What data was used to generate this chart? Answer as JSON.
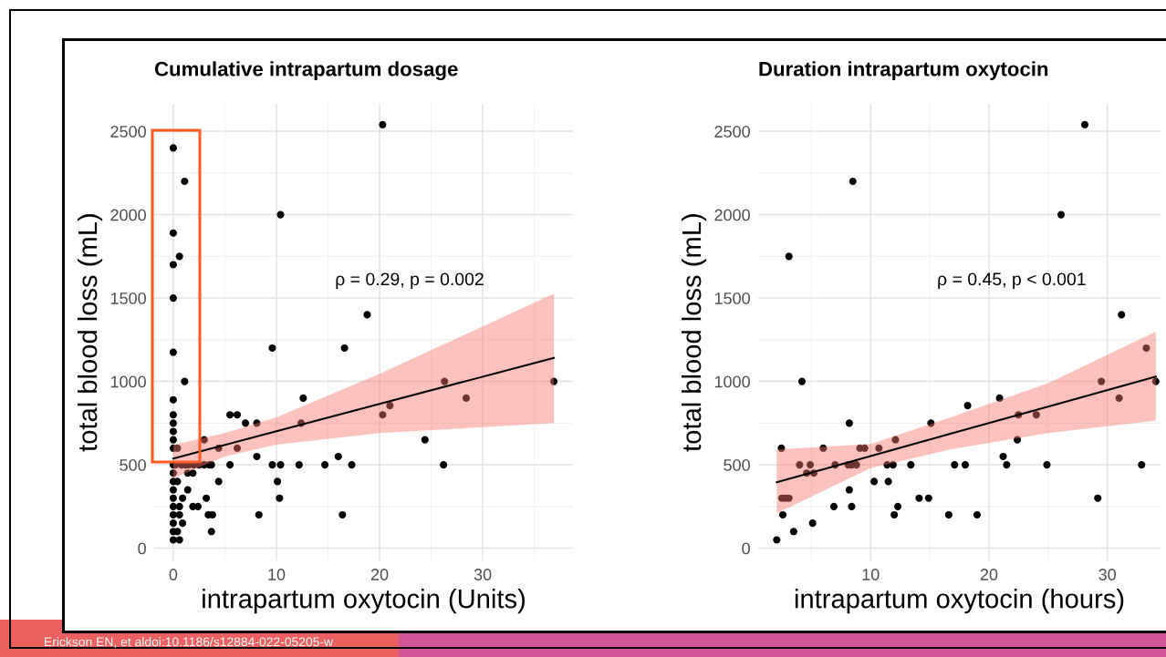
{
  "chart_data": [
    {
      "type": "scatter",
      "title": "Cumulative intrapartum dosage",
      "xlabel": "intrapartum oxytocin (Units)",
      "ylabel": "total blood loss (mL)",
      "xlim": [
        -1.85,
        38.75
      ],
      "ylim": [
        -75,
        2665
      ],
      "xticks": [
        0,
        10,
        20,
        30
      ],
      "yticks": [
        0,
        500,
        1000,
        1500,
        2000,
        2500
      ],
      "grid": true,
      "annotations": [
        "ρ = 0.29, p = 0.002",
        "Erickson EN, et aldoi:10.1186/s12884-022-05205-w"
      ],
      "series": [
        {
          "marker": "circle",
          "color": "#000000",
          "x": [
            0,
            1.1,
            0,
            0.6,
            0,
            0,
            0,
            1.1,
            0,
            0,
            0,
            0,
            0,
            0,
            0.4,
            3,
            4.4,
            5.5,
            6.2,
            7,
            8.1,
            6.2,
            8.1,
            9.6,
            10.4,
            12.6,
            12.4,
            16.6,
            16,
            0,
            0.2,
            0.8,
            1.2,
            1.5,
            2,
            2.5,
            3,
            3.5,
            3.7,
            5.5,
            9.6,
            10.4,
            12.2,
            14.7,
            17.3,
            1.4,
            1.9,
            0,
            0,
            0,
            0,
            0,
            0,
            0,
            0,
            0,
            0.4,
            1.4,
            0.9,
            0.6,
            0.6,
            0.9,
            0.4,
            0.6,
            1.9,
            2.4,
            3.2,
            3.4,
            3.8,
            3.7,
            4.4,
            10.1,
            10.3,
            8.3,
            16.4,
            20.3,
            18.8,
            20.3,
            21,
            26.3,
            28.4,
            36.9,
            24.4,
            26.2
          ],
          "values": [
            2400,
            2200,
            1890,
            1750,
            1700,
            1500,
            1175,
            1000,
            890,
            800,
            750,
            700,
            650,
            600,
            600,
            650,
            600,
            800,
            800,
            750,
            750,
            600,
            550,
            1200,
            2000,
            900,
            750,
            1200,
            550,
            500,
            500,
            500,
            500,
            500,
            500,
            500,
            500,
            500,
            500,
            500,
            500,
            500,
            500,
            500,
            500,
            450,
            450,
            450,
            400,
            350,
            300,
            250,
            200,
            150,
            100,
            50,
            400,
            350,
            300,
            250,
            200,
            150,
            100,
            50,
            250,
            250,
            300,
            200,
            200,
            100,
            400,
            400,
            300,
            200,
            200,
            2540,
            1400,
            800,
            855,
            1000,
            900,
            1000,
            650,
            500
          ]
        },
        {
          "type": "line",
          "color": "#000000",
          "x": [
            0,
            5,
            10,
            20,
            36.9
          ],
          "values": [
            537,
            619,
            701,
            865,
            1141
          ],
          "lower": [
            419,
            550,
            620,
            690,
            750
          ],
          "upper": [
            619,
            690,
            785,
            1045,
            1526
          ]
        }
      ]
    },
    {
      "type": "scatter",
      "title": "Duration intrapartum oxytocin",
      "xlabel": "intrapartum oxytocin (hours)",
      "ylabel": "total blood loss (mL)",
      "xlim": [
        0.5,
        34.5
      ],
      "ylim": [
        -75,
        2665
      ],
      "xticks": [
        10,
        20,
        30
      ],
      "yticks": [
        0,
        500,
        1000,
        1500,
        2000,
        2500
      ],
      "grid": true,
      "annotations": [
        "ρ = 0.45, p < 0.001"
      ],
      "series": [
        {
          "marker": "circle",
          "color": "#000000",
          "x": [
            2.07,
            2.46,
            2.58,
            2.5,
            2.8,
            3.1,
            3.1,
            3.5,
            4,
            4.2,
            4.9,
            4.6,
            5.2,
            5.1,
            6,
            6.9,
            7,
            8.2,
            8.2,
            8.4,
            8.1,
            8.4,
            8.8,
            8.5,
            9.1,
            9.5,
            10.3,
            10.7,
            11.4,
            11.9,
            11.5,
            12,
            12.3,
            12.1,
            13.4,
            14.1,
            14.9,
            15.1,
            16.6,
            19,
            17.1,
            18,
            18.2,
            20.9,
            21.2,
            21.5,
            22.5,
            22.4,
            24,
            24.9,
            26.1,
            28.1,
            29.2,
            29.5,
            31,
            31.2,
            32.9,
            33.3,
            34.1
          ],
          "values": [
            50,
            600,
            200,
            300,
            300,
            300,
            1750,
            100,
            500,
            1000,
            500,
            450,
            450,
            150,
            600,
            250,
            500,
            750,
            350,
            250,
            500,
            500,
            500,
            2200,
            600,
            600,
            400,
            600,
            500,
            500,
            400,
            200,
            250,
            650,
            500,
            300,
            300,
            750,
            200,
            200,
            500,
            500,
            855,
            900,
            550,
            500,
            800,
            650,
            800,
            500,
            2000,
            2540,
            300,
            1000,
            900,
            1400,
            500,
            1200,
            1000
          ]
        },
        {
          "type": "line",
          "color": "#000000",
          "x": [
            2.07,
            10,
            16.6,
            25,
            34.1
          ],
          "values": [
            395,
            552,
            683,
            849,
            1029
          ],
          "lower": [
            209,
            480,
            590,
            690,
            765
          ],
          "upper": [
            592,
            625,
            780,
            990,
            1298
          ]
        }
      ]
    }
  ]
}
